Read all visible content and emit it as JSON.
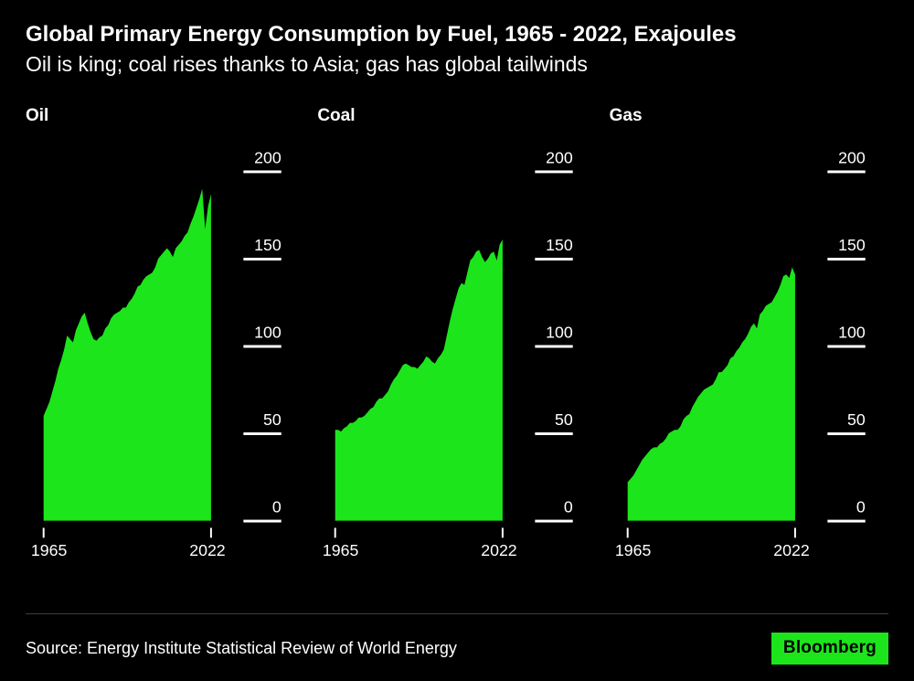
{
  "header": {
    "title": "Global Primary Energy Consumption by Fuel, 1965 - 2022, Exajoules",
    "subtitle": "Oil is king; coal rises thanks to Asia; gas has global tailwinds"
  },
  "footer": {
    "source": "Source: Energy Institute Statistical Review of World Energy",
    "brand": "Bloomberg"
  },
  "colors": {
    "background": "#000000",
    "text": "#ffffff",
    "area_green": "#1ce51c",
    "brand_bg": "#1ce51c",
    "brand_text": "#000000",
    "divider": "#3f3f3f"
  },
  "chart_data": {
    "type": "area",
    "unit": "Exajoules",
    "title": "Global Primary Energy Consumption by Fuel, 1965 - 2022, Exajoules",
    "x": {
      "start": 1965,
      "end": 2022,
      "tick_labels": [
        "1965",
        "2022"
      ]
    },
    "ylim": [
      0,
      200
    ],
    "yticks": [
      200,
      150,
      100,
      50,
      0
    ],
    "grid": false,
    "legend": "none",
    "panels": [
      {
        "label": "Oil",
        "values": [
          60,
          64,
          68,
          74,
          80,
          87,
          92,
          98,
          106,
          104,
          102,
          109,
          113,
          117,
          119,
          113,
          108,
          104,
          103,
          105,
          106,
          110,
          112,
          116,
          118,
          119,
          120,
          122,
          122,
          125,
          127,
          130,
          134,
          135,
          138,
          140,
          141,
          142,
          145,
          150,
          152,
          154,
          156,
          154,
          151,
          156,
          158,
          160,
          163,
          165,
          170,
          174,
          179,
          184,
          190,
          167,
          180,
          187
        ]
      },
      {
        "label": "Coal",
        "values": [
          52,
          52,
          51,
          53,
          54,
          56,
          56,
          57,
          59,
          59,
          60,
          62,
          64,
          65,
          68,
          70,
          70,
          72,
          74,
          78,
          81,
          83,
          86,
          89,
          90,
          89,
          88,
          88,
          87,
          89,
          91,
          94,
          93,
          91,
          90,
          93,
          95,
          98,
          106,
          114,
          121,
          127,
          133,
          136,
          135,
          142,
          149,
          151,
          154,
          155,
          151,
          148,
          150,
          153,
          154,
          149,
          158,
          161
        ]
      },
      {
        "label": "Gas",
        "values": [
          22,
          24,
          26,
          29,
          32,
          35,
          37,
          39,
          41,
          42,
          42,
          44,
          45,
          47,
          50,
          51,
          52,
          52,
          54,
          58,
          60,
          61,
          65,
          68,
          71,
          73,
          75,
          76,
          77,
          78,
          81,
          85,
          85,
          87,
          89,
          93,
          94,
          97,
          99,
          102,
          104,
          107,
          111,
          113,
          110,
          118,
          120,
          123,
          124,
          125,
          128,
          131,
          135,
          140,
          141,
          139,
          145,
          141
        ]
      }
    ]
  }
}
